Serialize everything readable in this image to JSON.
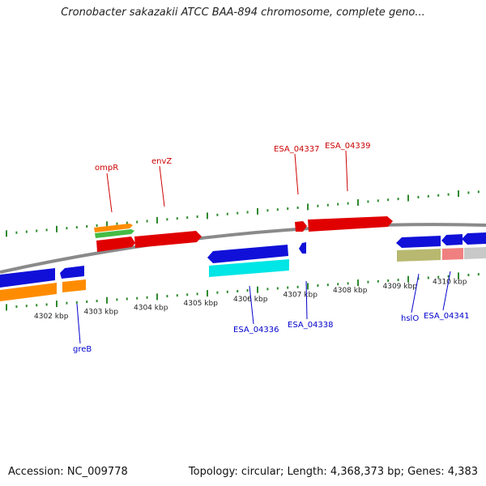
{
  "title": "Cronobacter sakazakii ATCC BAA-894 chromosome, complete geno...",
  "footer": {
    "accession": "Accession: NC_009778",
    "topology": "Topology: circular; Length: 4,368,373 bp; Genes: 4,383"
  },
  "colors": {
    "backbone": "#8a8a8a",
    "tick": "#2f8a2f",
    "forward_label": "#cc0000",
    "reverse_label": "#0000cc",
    "red": "#e00000",
    "blue": "#1010d8",
    "orange": "#ff8c00",
    "green": "#44bb44",
    "cyan": "#00e5e5",
    "khaki": "#b8b870",
    "pink": "#f08080",
    "gray": "#c8c8c8"
  },
  "tick_labels": [
    "4302 kbp",
    "4303 kbp",
    "4304 kbp",
    "4305 kbp",
    "4306 kbp",
    "4307 kbp",
    "4308 kbp",
    "4309 kbp",
    "4310 kbp"
  ],
  "gene_labels": [
    {
      "text": "ompR",
      "strand": "forward"
    },
    {
      "text": "envZ",
      "strand": "forward"
    },
    {
      "text": "ESA_04337",
      "strand": "forward"
    },
    {
      "text": "ESA_04339",
      "strand": "forward"
    },
    {
      "text": "greB",
      "strand": "reverse"
    },
    {
      "text": "ESA_04336",
      "strand": "reverse"
    },
    {
      "text": "ESA_04338",
      "strand": "reverse"
    },
    {
      "text": "hslO",
      "strand": "reverse"
    },
    {
      "text": "ESA_04341",
      "strand": "reverse"
    }
  ]
}
